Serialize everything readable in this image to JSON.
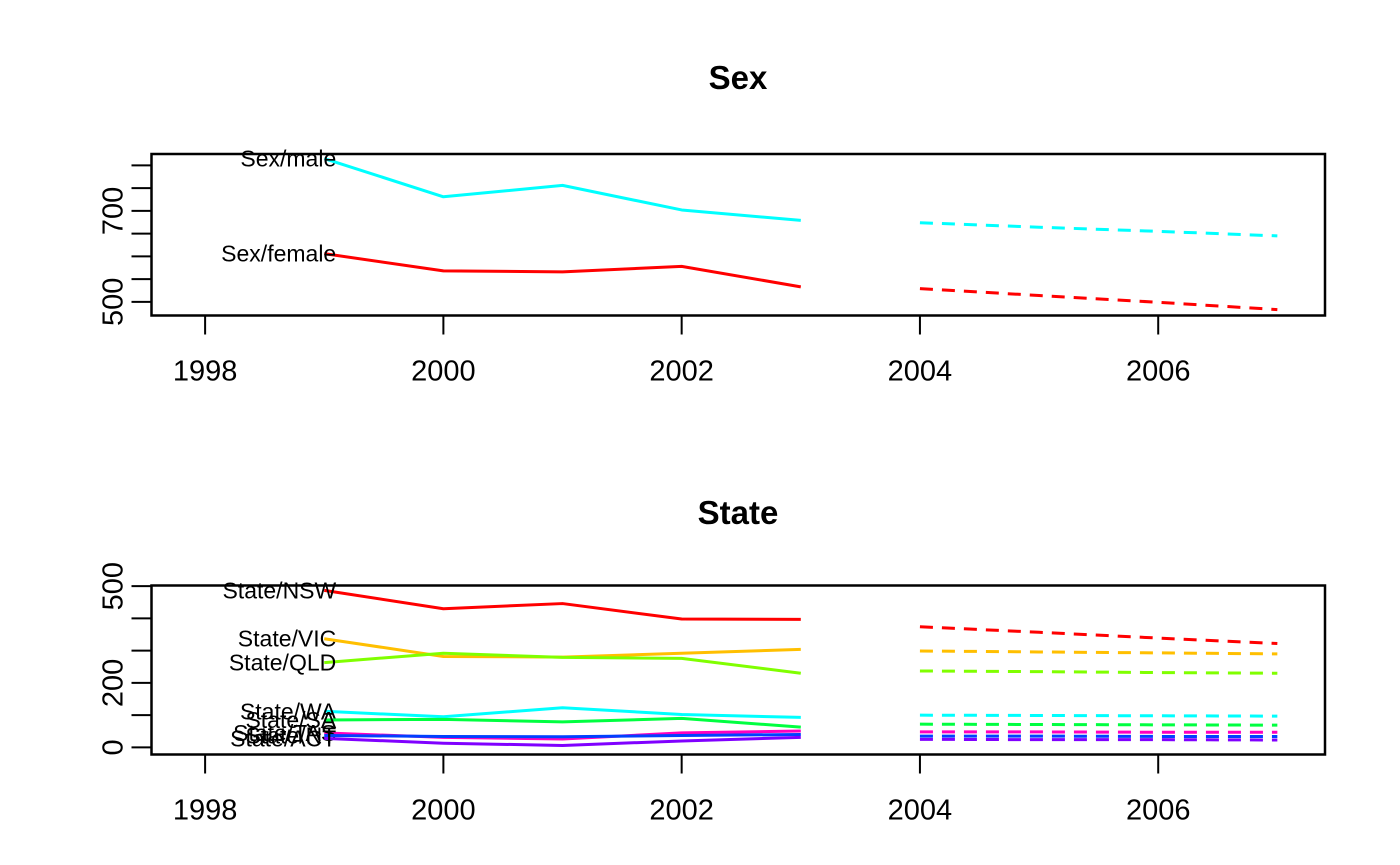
{
  "figure": {
    "background": "#ffffff",
    "description": "Two stacked base-R time series panels with observed lines (solid) and forecasts (dashed)"
  },
  "chart_data": [
    {
      "type": "line",
      "id": "sex",
      "title": "Sex",
      "xlabel": "",
      "ylabel": "",
      "grid": false,
      "legend_position": "labels-at-line-start",
      "x_axis": {
        "ticks": [
          1998,
          2000,
          2002,
          2004,
          2006
        ],
        "range": [
          1997.55,
          2007.4
        ]
      },
      "y_axis": {
        "ticks": [
          500,
          550,
          600,
          650,
          700,
          750,
          800
        ],
        "labeled_ticks": [
          500,
          700
        ],
        "range": [
          470,
          825
        ]
      },
      "observed_years": [
        1999,
        2000,
        2001,
        2002,
        2003
      ],
      "forecast_years": [
        2004,
        2005,
        2006,
        2007
      ],
      "series": [
        {
          "label": "Sex/male",
          "color": "#00FFFF",
          "observed": [
            815,
            731,
            756,
            702,
            679
          ],
          "forecast": [
            674,
            664,
            655,
            645
          ]
        },
        {
          "label": "Sex/female",
          "color": "#FF0000",
          "observed": [
            606,
            568,
            566,
            578,
            533
          ],
          "forecast": [
            529,
            514,
            499,
            483
          ]
        }
      ]
    },
    {
      "type": "line",
      "id": "state",
      "title": "State",
      "xlabel": "",
      "ylabel": "",
      "grid": false,
      "legend_position": "labels-at-line-start",
      "x_axis": {
        "ticks": [
          1998,
          2000,
          2002,
          2004,
          2006
        ],
        "range": [
          1997.55,
          2007.4
        ]
      },
      "y_axis": {
        "ticks": [
          0,
          100,
          200,
          300,
          400,
          500
        ],
        "labeled_ticks": [
          0,
          200,
          500
        ],
        "range": [
          -22,
          502
        ]
      },
      "observed_years": [
        1999,
        2000,
        2001,
        2002,
        2003
      ],
      "forecast_years": [
        2004,
        2005,
        2006,
        2007
      ],
      "series": [
        {
          "label": "State/NSW",
          "color": "#FF0000",
          "observed": [
            487,
            430,
            446,
            398,
            397
          ],
          "forecast": [
            374,
            357,
            339,
            322
          ]
        },
        {
          "label": "State/VIC",
          "color": "#FFBF00",
          "observed": [
            337,
            282,
            280,
            292,
            304
          ],
          "forecast": [
            299,
            296,
            293,
            290
          ]
        },
        {
          "label": "State/QLD",
          "color": "#80FF00",
          "observed": [
            263,
            292,
            279,
            276,
            230
          ],
          "forecast": [
            237,
            235,
            232,
            230
          ]
        },
        {
          "label": "State/WA",
          "color": "#00FFFF",
          "observed": [
            112,
            95,
            123,
            102,
            93
          ],
          "forecast": [
            100,
            99,
            98,
            97
          ]
        },
        {
          "label": "State/SA",
          "color": "#00FF40",
          "observed": [
            85,
            87,
            79,
            90,
            63
          ],
          "forecast": [
            72,
            71,
            70,
            69
          ]
        },
        {
          "label": "State/TAS",
          "color": "#FF00BF",
          "observed": [
            45,
            31,
            26,
            45,
            51
          ],
          "forecast": [
            48,
            48,
            47,
            47
          ]
        },
        {
          "label": "State/NT",
          "color": "#0040FF",
          "observed": [
            37,
            34,
            33,
            37,
            40
          ],
          "forecast": [
            35,
            35,
            34,
            34
          ]
        },
        {
          "label": "State/ACT",
          "color": "#8000FF",
          "observed": [
            28,
            13,
            6,
            20,
            31
          ],
          "forecast": [
            25,
            24,
            24,
            23
          ]
        }
      ]
    }
  ]
}
